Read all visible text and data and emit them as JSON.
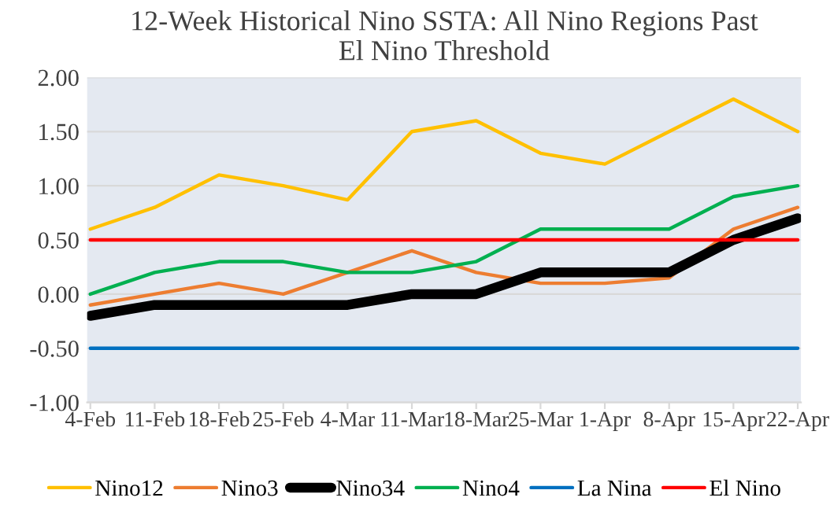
{
  "chart_data": {
    "type": "line",
    "title": "12-Week Historical Nino SSTA: All Nino Regions Past\nEl Nino Threshold",
    "categories": [
      "4-Feb",
      "11-Feb",
      "18-Feb",
      "25-Feb",
      "4-Mar",
      "11-Mar",
      "18-Mar",
      "25-Mar",
      "1-Apr",
      "8-Apr",
      "15-Apr",
      "22-Apr"
    ],
    "series": [
      {
        "name": "Nino12",
        "color": "#ffc000",
        "values": [
          0.6,
          0.8,
          1.1,
          1.0,
          0.87,
          1.5,
          1.6,
          1.3,
          1.2,
          1.5,
          1.8,
          1.5
        ]
      },
      {
        "name": "Nino3",
        "color": "#ed7d31",
        "values": [
          -0.1,
          0.0,
          0.1,
          0.0,
          0.2,
          0.4,
          0.2,
          0.1,
          0.1,
          0.15,
          0.6,
          0.8
        ]
      },
      {
        "name": "Nino34",
        "color": "#000000",
        "values": [
          -0.2,
          -0.1,
          -0.1,
          -0.1,
          -0.1,
          0.0,
          0.0,
          0.2,
          0.2,
          0.2,
          0.5,
          0.7
        ]
      },
      {
        "name": "Nino4",
        "color": "#00b050",
        "values": [
          0.0,
          0.2,
          0.3,
          0.3,
          0.2,
          0.2,
          0.3,
          0.6,
          0.6,
          0.6,
          0.9,
          1.0
        ]
      },
      {
        "name": "La Nina",
        "color": "#0070c0",
        "values": [
          -0.5,
          -0.5,
          -0.5,
          -0.5,
          -0.5,
          -0.5,
          -0.5,
          -0.5,
          -0.5,
          -0.5,
          -0.5,
          -0.5
        ]
      },
      {
        "name": "El Nino",
        "color": "#ff0000",
        "values": [
          0.5,
          0.5,
          0.5,
          0.5,
          0.5,
          0.5,
          0.5,
          0.5,
          0.5,
          0.5,
          0.5,
          0.5
        ]
      }
    ],
    "ylim": [
      -1.0,
      2.0
    ],
    "yticks": [
      {
        "value": -1.0,
        "label": "-1.00"
      },
      {
        "value": -0.5,
        "label": "-0.50"
      },
      {
        "value": 0.0,
        "label": "0.00"
      },
      {
        "value": 0.5,
        "label": "0.50"
      },
      {
        "value": 1.0,
        "label": "1.00"
      },
      {
        "value": 1.5,
        "label": "1.50"
      },
      {
        "value": 2.0,
        "label": "2.00"
      }
    ],
    "grid": "y",
    "legend": "bottom",
    "line_style": "solid",
    "marker": "none"
  }
}
